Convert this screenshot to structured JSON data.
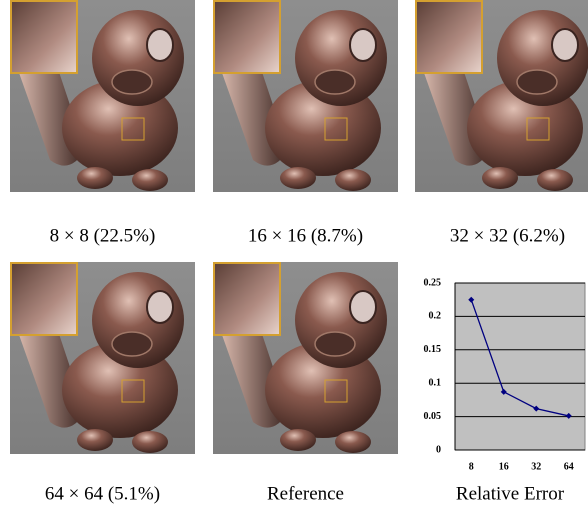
{
  "panels": [
    {
      "caption": "8 × 8   (22.5%)"
    },
    {
      "caption": "16 × 16   (8.7%)"
    },
    {
      "caption": "32 × 32   (6.2%)"
    },
    {
      "caption": "64 × 64   (5.1%)"
    },
    {
      "caption": "Reference"
    }
  ],
  "chart_data": {
    "type": "line",
    "title": "Relative Error",
    "categories": [
      "8",
      "16",
      "32",
      "64"
    ],
    "series": [
      {
        "name": null,
        "color": "#000080",
        "values": [
          0.225,
          0.087,
          0.062,
          0.051
        ]
      }
    ],
    "ylim": [
      0,
      0.25
    ],
    "yticks": [
      0,
      0.05,
      0.1,
      0.15,
      0.2,
      0.25
    ],
    "grid": true,
    "background": "#c0c0c0"
  }
}
